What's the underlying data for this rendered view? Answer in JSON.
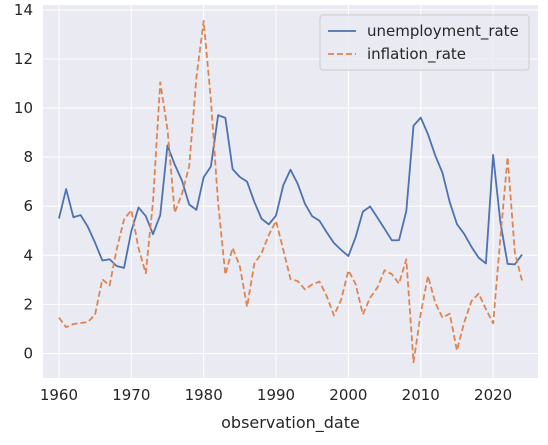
{
  "chart_data": {
    "type": "line",
    "title": "",
    "xlabel": "observation_date",
    "ylabel": "",
    "xlim": [
      1957.8,
      2026.2
    ],
    "ylim": [
      -1.0,
      14.2
    ],
    "xticks": [
      1960,
      1970,
      1980,
      1990,
      2000,
      2010,
      2020
    ],
    "yticks": [
      0,
      2,
      4,
      6,
      8,
      10,
      12,
      14
    ],
    "grid": true,
    "legend_position": "top-right",
    "x": [
      1960,
      1961,
      1962,
      1963,
      1964,
      1965,
      1966,
      1967,
      1968,
      1969,
      1970,
      1971,
      1972,
      1973,
      1974,
      1975,
      1976,
      1977,
      1978,
      1979,
      1980,
      1981,
      1982,
      1983,
      1984,
      1985,
      1986,
      1987,
      1988,
      1989,
      1990,
      1991,
      1992,
      1993,
      1994,
      1995,
      1996,
      1997,
      1998,
      1999,
      2000,
      2001,
      2002,
      2003,
      2004,
      2005,
      2006,
      2007,
      2008,
      2009,
      2010,
      2011,
      2012,
      2013,
      2014,
      2015,
      2016,
      2017,
      2018,
      2019,
      2020,
      2021,
      2022,
      2023,
      2024
    ],
    "series": [
      {
        "name": "unemployment_rate",
        "color": "#4c72b0",
        "dash": "solid",
        "values": [
          5.5,
          6.7,
          5.55,
          5.64,
          5.16,
          4.51,
          3.79,
          3.84,
          3.56,
          3.49,
          4.98,
          5.95,
          5.6,
          4.86,
          5.64,
          8.48,
          7.7,
          7.05,
          6.07,
          5.85,
          7.18,
          7.62,
          9.71,
          9.6,
          7.51,
          7.19,
          7.0,
          6.18,
          5.49,
          5.26,
          5.62,
          6.85,
          7.49,
          6.91,
          6.1,
          5.59,
          5.41,
          4.94,
          4.5,
          4.22,
          3.97,
          4.74,
          5.78,
          5.99,
          5.54,
          5.08,
          4.61,
          4.62,
          5.8,
          9.28,
          9.61,
          8.93,
          8.07,
          7.36,
          6.17,
          5.27,
          4.87,
          4.35,
          3.9,
          3.67,
          8.09,
          5.35,
          3.65,
          3.63,
          4.03
        ]
      },
      {
        "name": "inflation_rate",
        "color": "#dd8452",
        "dash": "dashed",
        "values": [
          1.46,
          1.07,
          1.2,
          1.24,
          1.28,
          1.59,
          3.02,
          2.77,
          4.27,
          5.46,
          5.84,
          4.29,
          3.27,
          6.18,
          11.05,
          9.14,
          5.74,
          6.5,
          7.63,
          11.25,
          13.55,
          10.33,
          6.13,
          3.21,
          4.3,
          3.55,
          1.9,
          3.66,
          4.08,
          4.83,
          5.4,
          4.23,
          3.03,
          2.95,
          2.61,
          2.81,
          2.93,
          2.34,
          1.55,
          2.19,
          3.38,
          2.83,
          1.59,
          2.27,
          2.68,
          3.39,
          3.23,
          2.85,
          3.84,
          -0.36,
          1.64,
          3.16,
          2.07,
          1.46,
          1.62,
          0.12,
          1.26,
          2.13,
          2.44,
          1.81,
          1.23,
          4.7,
          8.0,
          4.12,
          2.95
        ]
      }
    ]
  }
}
